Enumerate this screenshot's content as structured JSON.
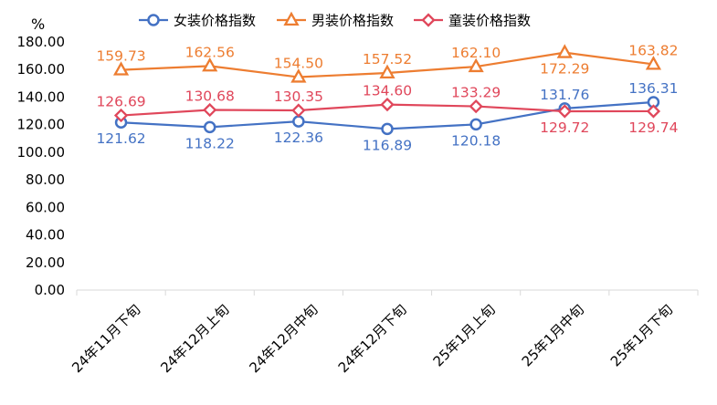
{
  "chart_data": {
    "type": "line",
    "title": "",
    "xlabel": "",
    "ylabel": "",
    "unit": "%",
    "categories": [
      "24年11月下旬",
      "24年12月上旬",
      "24年12月中旬",
      "24年12月下旬",
      "25年1月上旬",
      "25年1月中旬",
      "25年1月下旬"
    ],
    "ylim": [
      0,
      180
    ],
    "yticks": [
      "0.00",
      "20.00",
      "40.00",
      "60.00",
      "80.00",
      "100.00",
      "120.00",
      "140.00",
      "160.00",
      "180.00"
    ],
    "grid": false,
    "legend_position": "top",
    "series": [
      {
        "name": "女装价格指数",
        "color": "#4472C4",
        "marker": "circle",
        "label_position": [
          "below",
          "below",
          "below",
          "below",
          "below",
          "above",
          "above"
        ],
        "values": [
          121.62,
          118.22,
          122.36,
          116.89,
          120.18,
          131.76,
          136.31
        ],
        "labels": [
          "121.62",
          "118.22",
          "122.36",
          "116.89",
          "120.18",
          "131.76",
          "136.31"
        ]
      },
      {
        "name": "男装价格指数",
        "color": "#ED7D31",
        "marker": "triangle",
        "label_position": [
          "above",
          "above",
          "above",
          "above",
          "above",
          "below",
          "above"
        ],
        "values": [
          159.73,
          162.56,
          154.5,
          157.52,
          162.1,
          172.29,
          163.82
        ],
        "labels": [
          "159.73",
          "162.56",
          "154.50",
          "157.52",
          "162.10",
          "172.29",
          "163.82"
        ]
      },
      {
        "name": "童装价格指数",
        "color": "#E0475B",
        "marker": "diamond",
        "label_position": [
          "above",
          "above",
          "above",
          "above",
          "above",
          "below",
          "below"
        ],
        "values": [
          126.69,
          130.68,
          130.35,
          134.6,
          133.29,
          129.72,
          129.74
        ],
        "labels": [
          "126.69",
          "130.68",
          "130.35",
          "134.60",
          "133.29",
          "129.72",
          "129.74"
        ]
      }
    ]
  }
}
